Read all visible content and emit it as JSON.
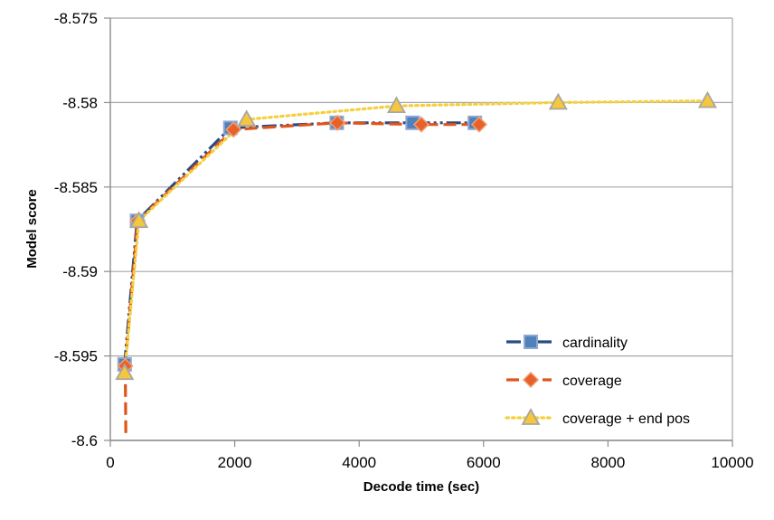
{
  "chart_data": {
    "type": "line",
    "title": "",
    "xlabel": "Decode time (sec)",
    "ylabel": "Model score",
    "xlim": [
      0,
      10000
    ],
    "ylim": [
      -8.6,
      -8.575
    ],
    "x_ticks": [
      0,
      2000,
      4000,
      6000,
      8000,
      10000
    ],
    "x_tick_labels": [
      "0",
      "2000",
      "4000",
      "6000",
      "8000",
      "10000"
    ],
    "y_ticks": [
      -8.575,
      -8.58,
      -8.585,
      -8.59,
      -8.595,
      -8.6
    ],
    "y_tick_labels": [
      "-8.575",
      "-8.58",
      "-8.585",
      "-8.59",
      "-8.595",
      "-8.6"
    ],
    "grid": "horizontal",
    "legend_position": "bottom-right",
    "series": [
      {
        "name": "cardinality",
        "marker": "square",
        "line_style": "dash-dot-dot",
        "line_color": "#2a4a87",
        "marker_fill": "#4f81bd",
        "marker_edge": "#8fa8d0",
        "x": [
          230,
          430,
          1930,
          3640,
          4860,
          5860
        ],
        "y": [
          -8.5955,
          -8.587,
          -8.5815,
          -8.5812,
          -8.5812,
          -8.5812
        ]
      },
      {
        "name": "coverage",
        "marker": "diamond",
        "line_style": "dashed",
        "line_color": "#e0541a",
        "marker_fill": "#e8602a",
        "marker_edge": "#f0a070",
        "x": [
          240,
          440,
          1980,
          3650,
          5000,
          5930
        ],
        "y": [
          -8.5956,
          -8.587,
          -8.5816,
          -8.5812,
          -8.5813,
          -8.5813
        ],
        "tail_x": [
          240,
          250
        ],
        "tail_y": [
          -8.5956,
          -8.5998
        ]
      },
      {
        "name": "coverage + end pos",
        "marker": "triangle",
        "line_style": "dotted",
        "line_color": "#f4d03f",
        "marker_fill": "#f6c73a",
        "marker_edge": "#a6a6a6",
        "x": [
          230,
          460,
          2190,
          4600,
          7200,
          9600
        ],
        "y": [
          -8.596,
          -8.587,
          -8.581,
          -8.5802,
          -8.58,
          -8.5799
        ]
      }
    ]
  }
}
